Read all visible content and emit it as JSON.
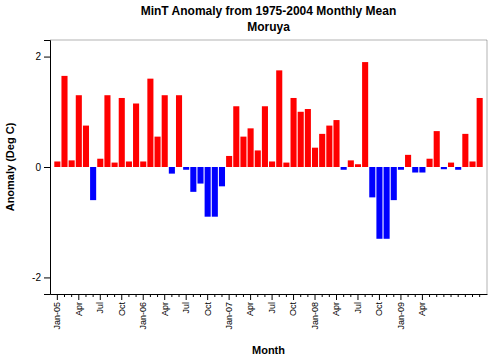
{
  "chart_data": {
    "type": "bar",
    "title": "MinT Anomaly from 1975-2004 Monthly Mean",
    "subtitle": "Moruya",
    "x_label": "Month",
    "y_label": "Anomaly (Deg C)",
    "categories": [
      "Jan-05",
      null,
      null,
      "Apr",
      null,
      null,
      "Jul",
      null,
      null,
      "Oct",
      null,
      null,
      "Jan-06",
      null,
      null,
      "Apr",
      null,
      null,
      "Jul",
      null,
      null,
      "Oct",
      null,
      null,
      "Jan-07",
      null,
      null,
      "Apr",
      null,
      null,
      "Jul",
      null,
      null,
      "Oct",
      null,
      null,
      "Jan-08",
      null,
      null,
      "Apr",
      null,
      null,
      "Jul",
      null,
      null,
      "Oct",
      null,
      null,
      "Jan-09",
      null,
      null,
      "Apr",
      null,
      null,
      null,
      null,
      null,
      null,
      null,
      null
    ],
    "values": [
      0.1,
      1.65,
      0.12,
      1.3,
      0.75,
      -0.6,
      0.15,
      1.3,
      0.08,
      1.25,
      0.1,
      1.15,
      0.1,
      1.6,
      0.55,
      1.3,
      -0.12,
      1.3,
      -0.05,
      -0.45,
      -0.3,
      -0.9,
      -0.9,
      -0.35,
      0.2,
      1.1,
      0.55,
      0.7,
      0.3,
      1.1,
      0.1,
      1.75,
      0.08,
      1.25,
      1.0,
      1.05,
      0.35,
      0.6,
      0.75,
      0.85,
      -0.05,
      0.12,
      0.05,
      1.9,
      -0.55,
      -1.3,
      -1.3,
      -0.6,
      -0.05,
      0.22,
      -0.1,
      -0.1,
      0.15,
      0.65,
      -0.04,
      0.08,
      -0.05,
      0.6,
      0.1,
      1.25
    ],
    "colors": [
      "#FF0000",
      "#FF0000",
      "#FF0000",
      "#FF0000",
      "#FF0000",
      "#0000FF",
      "#FF0000",
      "#FF0000",
      "#FF0000",
      "#FF0000",
      "#FF0000",
      "#FF0000",
      "#FF0000",
      "#FF0000",
      "#FF0000",
      "#FF0000",
      "#0000FF",
      "#FF0000",
      "#0000FF",
      "#0000FF",
      "#0000FF",
      "#0000FF",
      "#0000FF",
      "#0000FF",
      "#FF0000",
      "#FF0000",
      "#FF0000",
      "#FF0000",
      "#FF0000",
      "#FF0000",
      "#FF0000",
      "#FF0000",
      "#FF0000",
      "#FF0000",
      "#FF0000",
      "#FF0000",
      "#FF0000",
      "#FF0000",
      "#FF0000",
      "#FF0000",
      "#0000FF",
      "#FF0000",
      "#FF0000",
      "#FF0000",
      "#0000FF",
      "#0000FF",
      "#0000FF",
      "#0000FF",
      "#0000FF",
      "#FF0000",
      "#0000FF",
      "#0000FF",
      "#FF0000",
      "#FF0000",
      "#0000FF",
      "#FF0000",
      "#0000FF",
      "#FF0000",
      "#FF0000",
      "#FF0000"
    ],
    "ylim": [
      -2.3,
      2.3
    ],
    "yticks": [
      -2,
      0,
      2
    ],
    "grid": false
  }
}
